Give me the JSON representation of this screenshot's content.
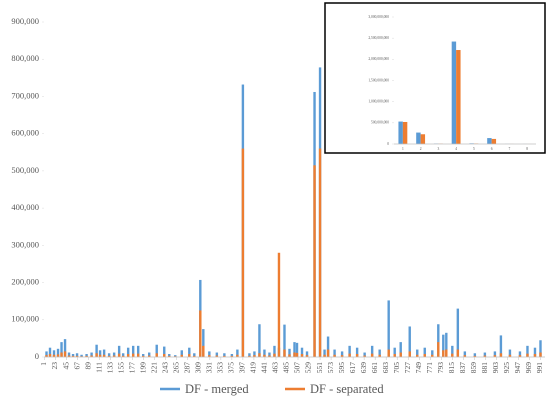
{
  "chart_data": [
    {
      "type": "bar",
      "x": [
        5,
        12,
        20,
        28,
        35,
        42,
        50,
        58,
        66,
        75,
        85,
        95,
        105,
        112,
        120,
        130,
        140,
        150,
        158,
        168,
        178,
        188,
        198,
        210,
        225,
        240,
        250,
        262,
        275,
        290,
        300,
        312,
        318,
        330,
        345,
        360,
        375,
        386,
        397,
        410,
        420,
        430,
        440,
        450,
        460,
        469,
        480,
        490,
        500,
        505,
        515,
        525,
        540,
        551,
        560,
        567,
        580,
        595,
        610,
        625,
        640,
        655,
        670,
        688,
        700,
        712,
        730,
        745,
        760,
        775,
        787,
        797,
        803,
        815,
        826,
        840,
        860,
        880,
        900,
        912,
        930,
        950,
        965,
        980,
        991
      ],
      "series": [
        {
          "name": "DF - merged",
          "color": "#5b9bd5",
          "values": [
            15000,
            25000,
            18000,
            22000,
            40000,
            48000,
            12000,
            8000,
            10000,
            6000,
            8000,
            12000,
            33000,
            18000,
            20000,
            10000,
            12000,
            30000,
            10000,
            25000,
            30000,
            30000,
            8000,
            12000,
            33000,
            28000,
            8000,
            5000,
            18000,
            25000,
            10000,
            207000,
            75000,
            15000,
            12000,
            10000,
            8000,
            20000,
            732000,
            10000,
            15000,
            88000,
            20000,
            12000,
            30000,
            25000,
            87000,
            22000,
            40000,
            38000,
            25000,
            15000,
            712000,
            778000,
            20000,
            55000,
            20000,
            15000,
            30000,
            25000,
            12000,
            30000,
            20000,
            152000,
            25000,
            40000,
            82000,
            20000,
            25000,
            18000,
            88000,
            60000,
            65000,
            30000,
            130000,
            15000,
            10000,
            12000,
            15000,
            58000,
            20000,
            15000,
            30000,
            25000,
            45000
          ]
        },
        {
          "name": "DF - separated",
          "color": "#ed7d31",
          "values": [
            5000,
            8000,
            6000,
            7000,
            12000,
            15000,
            4000,
            3000,
            3000,
            2000,
            3000,
            4000,
            10000,
            6000,
            6000,
            3000,
            4000,
            9000,
            3000,
            8000,
            9000,
            9000,
            3000,
            4000,
            10000,
            8000,
            3000,
            2000,
            6000,
            8000,
            3000,
            125000,
            30000,
            5000,
            4000,
            3000,
            3000,
            6000,
            560000,
            3000,
            5000,
            10000,
            6000,
            4000,
            9000,
            280000,
            20000,
            7000,
            12000,
            11000,
            8000,
            5000,
            515000,
            560000,
            6000,
            20000,
            6000,
            5000,
            9000,
            8000,
            4000,
            9000,
            6000,
            20000,
            8000,
            12000,
            15000,
            6000,
            8000,
            6000,
            40000,
            18000,
            20000,
            9000,
            20000,
            5000,
            3000,
            4000,
            5000,
            10000,
            6000,
            5000,
            9000,
            8000,
            12000
          ]
        }
      ],
      "xlim": [
        0,
        1000
      ],
      "xticks": [
        1,
        23,
        45,
        67,
        89,
        111,
        133,
        155,
        177,
        199,
        221,
        243,
        265,
        287,
        309,
        331,
        353,
        375,
        397,
        419,
        441,
        463,
        485,
        507,
        529,
        551,
        573,
        595,
        617,
        639,
        661,
        683,
        705,
        727,
        749,
        771,
        793,
        815,
        837,
        859,
        881,
        903,
        925,
        947,
        969,
        991
      ],
      "ylim": [
        0,
        900000
      ],
      "yticks": [
        0,
        {
          "value": 100000,
          "label": "100,000"
        },
        {
          "value": 200000,
          "label": "200,000"
        },
        {
          "value": 300000,
          "label": "300,000"
        },
        {
          "value": 400000,
          "label": "400,000"
        },
        {
          "value": 500000,
          "label": "500,000"
        },
        {
          "value": 600000,
          "label": "600,000"
        },
        {
          "value": 700000,
          "label": "700,000"
        },
        {
          "value": 800000,
          "label": "800,000"
        },
        {
          "value": 900000,
          "label": "900,000"
        }
      ],
      "legend": "bottom"
    },
    {
      "type": "bar",
      "categories": [
        "1",
        "2",
        "3",
        "4",
        "5",
        "6",
        "7",
        "8"
      ],
      "series": [
        {
          "color": "#5b9bd5",
          "values": [
            530000000,
            270000000,
            10000000,
            2420000000,
            15000000,
            140000000,
            3000000,
            2000000
          ]
        },
        {
          "color": "#ed7d31",
          "values": [
            520000000,
            230000000,
            8000000,
            2220000000,
            12000000,
            120000000,
            2000000,
            1000000
          ]
        }
      ],
      "ylim": [
        0,
        3000000000
      ],
      "yticks": [
        0,
        {
          "value": 500000000,
          "label": "500,000,000"
        },
        {
          "value": 1000000000,
          "label": "1,000,000,000"
        },
        {
          "value": 1500000000,
          "label": "1,500,000,000"
        },
        {
          "value": 2000000000,
          "label": "2,000,000,000"
        },
        {
          "value": 2500000000,
          "label": "2,500,000,000"
        },
        {
          "value": 3000000000,
          "label": "3,000,000,000"
        }
      ]
    }
  ]
}
